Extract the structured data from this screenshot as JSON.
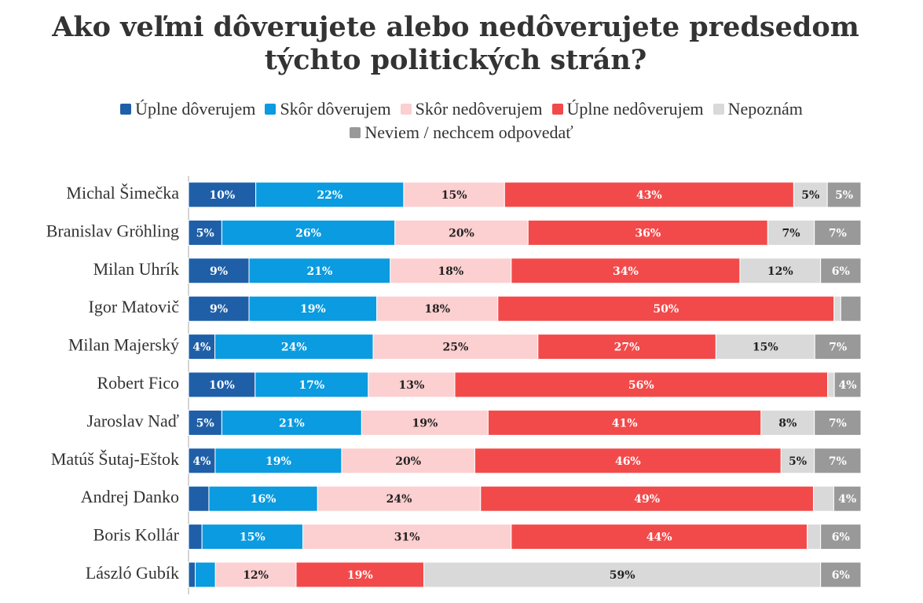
{
  "chart_data": {
    "type": "stacked-bar-100",
    "title": "Ako veľmi dôverujete alebo nedôverujete predsedom týchto politických strán?",
    "categories": [
      "Michal Šimečka",
      "Branislav Gröhling",
      "Milan Uhrík",
      "Igor Matovič",
      "Milan Majerský",
      "Robert Fico",
      "Jaroslav Naď",
      "Matúš Šutaj-Eštok",
      "Andrej Danko",
      "Boris Kollár",
      "László Gubík"
    ],
    "series": [
      {
        "name": "Úplne dôverujem",
        "color": "#1f5fa8",
        "label_color": "#ffffff",
        "values": [
          10,
          5,
          9,
          9,
          4,
          10,
          5,
          4,
          3,
          2,
          1
        ],
        "value_labels": [
          "10%",
          "5%",
          "9%",
          "9%",
          "4%",
          "10%",
          "5%",
          "4%",
          null,
          null,
          null
        ]
      },
      {
        "name": "Skôr dôverujem",
        "color": "#0a9be0",
        "label_color": "#ffffff",
        "values": [
          22,
          26,
          21,
          19,
          24,
          17,
          21,
          19,
          16,
          15,
          3
        ],
        "value_labels": [
          "22%",
          "26%",
          "21%",
          "19%",
          "24%",
          "17%",
          "21%",
          "19%",
          "16%",
          "15%",
          null
        ]
      },
      {
        "name": "Skôr nedôverujem",
        "color": "#fccfd0",
        "label_color": "#222222",
        "values": [
          15,
          20,
          18,
          18,
          25,
          13,
          19,
          20,
          24,
          31,
          12
        ],
        "value_labels": [
          "15%",
          "20%",
          "18%",
          "18%",
          "25%",
          "13%",
          "19%",
          "20%",
          "24%",
          "31%",
          "12%"
        ]
      },
      {
        "name": "Úplne nedôverujem",
        "color": "#f24a4a",
        "label_color": "#ffffff",
        "values": [
          43,
          36,
          34,
          50,
          27,
          56,
          41,
          46,
          49,
          44,
          19
        ],
        "value_labels": [
          "43%",
          "36%",
          "34%",
          "50%",
          "27%",
          "56%",
          "41%",
          "46%",
          "49%",
          "44%",
          "19%"
        ]
      },
      {
        "name": "Nepoznám",
        "color": "#d9d9d9",
        "label_color": "#222222",
        "values": [
          5,
          7,
          12,
          1,
          15,
          1,
          8,
          5,
          3,
          2,
          59
        ],
        "value_labels": [
          "5%",
          "7%",
          "12%",
          null,
          "15%",
          null,
          "8%",
          "5%",
          null,
          null,
          "59%"
        ]
      },
      {
        "name": "Neviem / nechcem odpovedať",
        "color": "#999999",
        "label_color": "#ffffff",
        "values": [
          5,
          7,
          6,
          3,
          7,
          4,
          7,
          7,
          4,
          6,
          6
        ],
        "value_labels": [
          "5%",
          "7%",
          "6%",
          null,
          "7%",
          "4%",
          "7%",
          "7%",
          "4%",
          "6%",
          "6%"
        ]
      }
    ]
  }
}
